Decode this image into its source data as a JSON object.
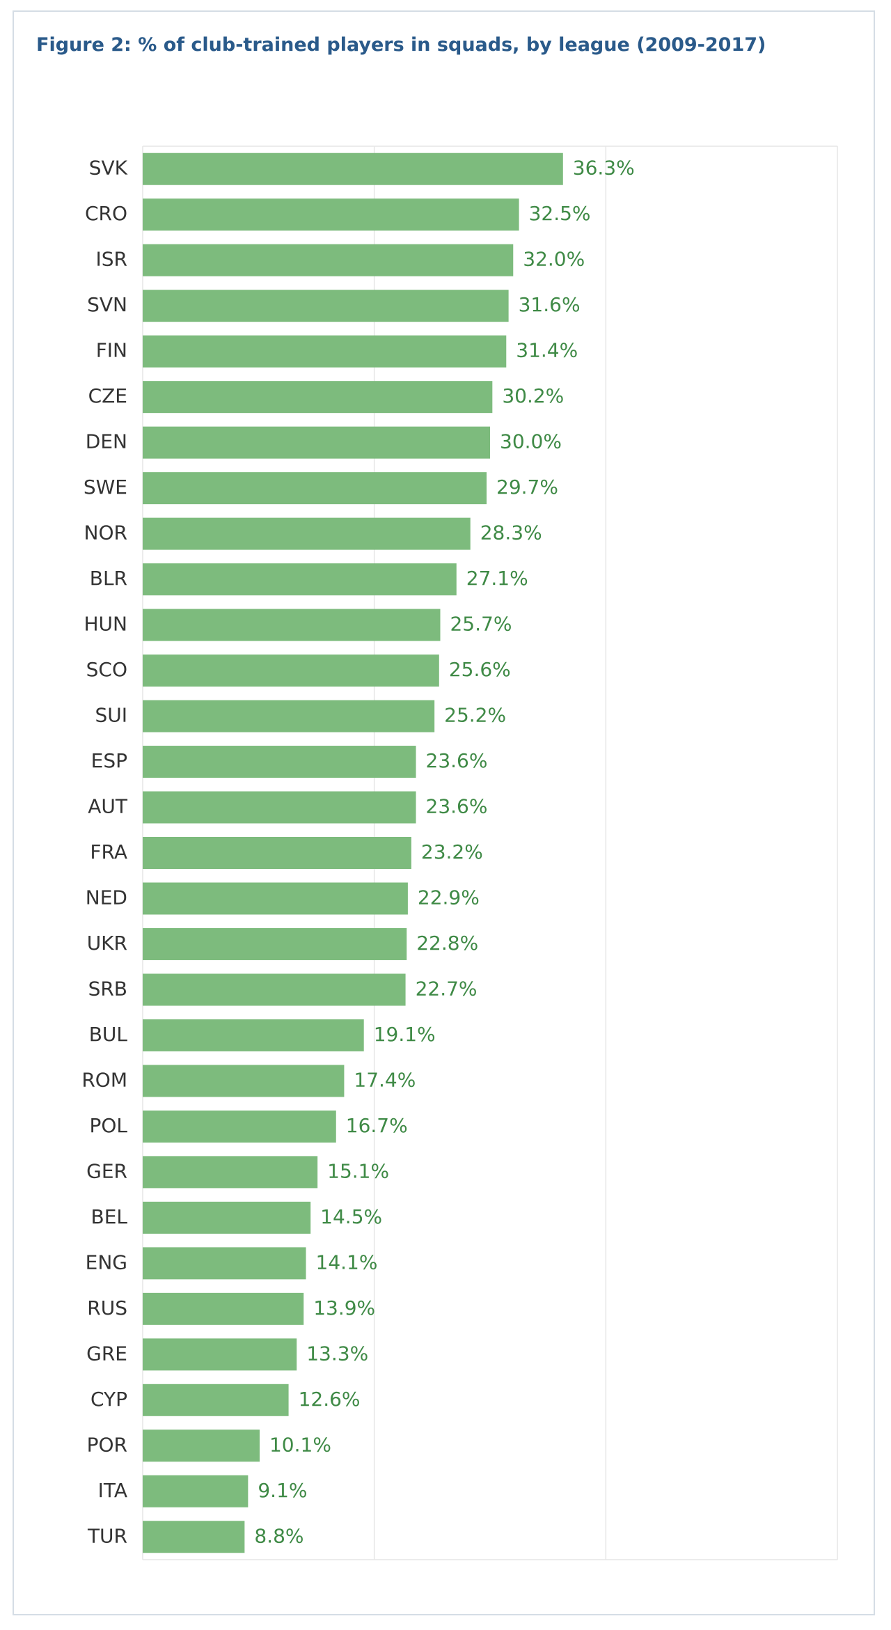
{
  "chart_data": {
    "type": "bar",
    "orientation": "horizontal",
    "title": "Figure 2: % of club-trained players in squads, by league (2009-2017)",
    "categories": [
      "SVK",
      "CRO",
      "ISR",
      "SVN",
      "FIN",
      "CZE",
      "DEN",
      "SWE",
      "NOR",
      "BLR",
      "HUN",
      "SCO",
      "SUI",
      "ESP",
      "AUT",
      "FRA",
      "NED",
      "UKR",
      "SRB",
      "BUL",
      "ROM",
      "POL",
      "GER",
      "BEL",
      "ENG",
      "RUS",
      "GRE",
      "CYP",
      "POR",
      "ITA",
      "TUR"
    ],
    "values": [
      36.3,
      32.5,
      32.0,
      31.6,
      31.4,
      30.2,
      30.0,
      29.7,
      28.3,
      27.1,
      25.7,
      25.6,
      25.2,
      23.6,
      23.6,
      23.2,
      22.9,
      22.8,
      22.7,
      19.1,
      17.4,
      16.7,
      15.1,
      14.5,
      14.1,
      13.9,
      13.3,
      12.6,
      10.1,
      9.1,
      8.8
    ],
    "value_labels": [
      "36.3%",
      "32.5%",
      "32.0%",
      "31.6%",
      "31.4%",
      "30.2%",
      "30.0%",
      "29.7%",
      "28.3%",
      "27.1%",
      "25.7%",
      "25.6%",
      "25.2%",
      "23.6%",
      "23.6%",
      "23.2%",
      "22.9%",
      "22.8%",
      "22.7%",
      "19.1%",
      "17.4%",
      "16.7%",
      "15.1%",
      "14.5%",
      "14.1%",
      "13.9%",
      "13.3%",
      "12.6%",
      "10.1%",
      "9.1%",
      "8.8%"
    ],
    "color": "#7dbb7d",
    "xlim": [
      0,
      60
    ],
    "xticks": [
      0,
      20,
      40,
      60
    ],
    "grid": true
  }
}
